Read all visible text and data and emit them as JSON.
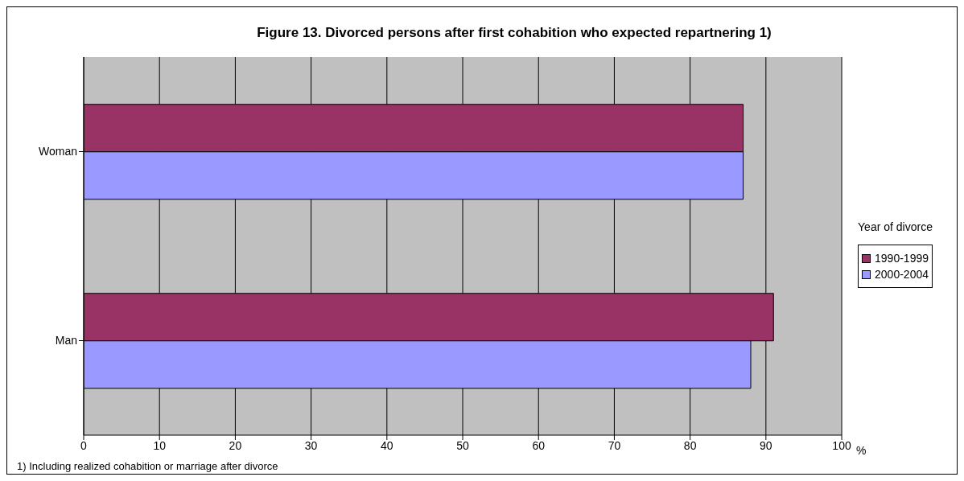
{
  "chart_data": {
    "type": "bar",
    "orientation": "horizontal",
    "title": "Figure 13. Divorced persons after first cohabition who expected repartnering 1)",
    "xlabel": "%",
    "legend_title": "Year of divorce",
    "annotations": [
      "1) Including realized cohabition or marriage after divorce"
    ],
    "categories": [
      "Woman",
      "Man"
    ],
    "series": [
      {
        "name": "1990-1999",
        "color": "#993366",
        "values": [
          87,
          91
        ]
      },
      {
        "name": "2000-2004",
        "color": "#9999ff",
        "values": [
          87,
          88
        ]
      }
    ],
    "xlim": [
      0,
      100
    ],
    "xticks": [
      0,
      10,
      20,
      30,
      40,
      50,
      60,
      70,
      80,
      90,
      100
    ],
    "grid": "x",
    "legend": "right"
  }
}
